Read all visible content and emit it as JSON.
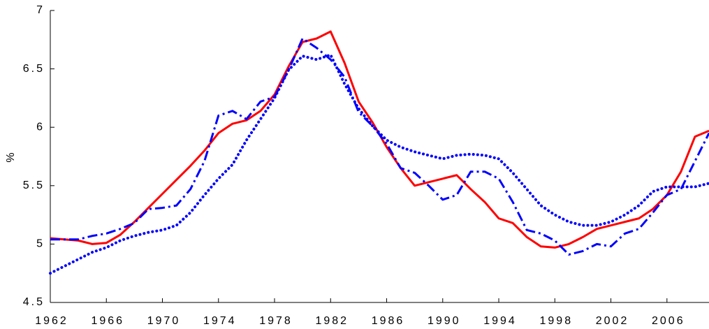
{
  "chart_data": {
    "type": "line",
    "ylabel": "%",
    "x": [
      1962,
      1963,
      1964,
      1965,
      1966,
      1967,
      1968,
      1969,
      1970,
      1971,
      1972,
      1973,
      1974,
      1975,
      1976,
      1977,
      1978,
      1979,
      1980,
      1981,
      1982,
      1983,
      1984,
      1985,
      1986,
      1987,
      1988,
      1989,
      1990,
      1991,
      1992,
      1993,
      1994,
      1995,
      1996,
      1997,
      1998,
      1999,
      2000,
      2001,
      2002,
      2003,
      2004,
      2005,
      2006,
      2007,
      2008,
      2009
    ],
    "xlim": [
      1962,
      2009
    ],
    "xticks": [
      1962,
      1966,
      1970,
      1974,
      1978,
      1982,
      1986,
      1990,
      1994,
      1998,
      2002,
      2006
    ],
    "ylim": [
      4.5,
      7
    ],
    "yticks": [
      4.5,
      5,
      5.5,
      6,
      6.5,
      7
    ],
    "series": [
      {
        "color": "#ff0000",
        "style": "solid",
        "values": [
          5.05,
          5.04,
          5.03,
          5.0,
          5.01,
          5.08,
          5.19,
          5.31,
          5.43,
          5.55,
          5.67,
          5.8,
          5.95,
          6.03,
          6.06,
          6.14,
          6.28,
          6.52,
          6.73,
          6.76,
          6.82,
          6.55,
          6.22,
          6.04,
          5.83,
          5.65,
          5.5,
          5.53,
          5.56,
          5.59,
          5.47,
          5.36,
          5.22,
          5.18,
          5.06,
          4.98,
          4.97,
          5.0,
          5.06,
          5.13,
          5.16,
          5.19,
          5.22,
          5.3,
          5.42,
          5.62,
          5.92,
          5.97
        ]
      },
      {
        "color": "#0000ff",
        "style": "dashdot",
        "values": [
          5.04,
          5.04,
          5.04,
          5.07,
          5.09,
          5.13,
          5.18,
          5.3,
          5.31,
          5.33,
          5.47,
          5.71,
          6.1,
          6.14,
          6.07,
          6.22,
          6.26,
          6.49,
          6.76,
          6.68,
          6.58,
          6.43,
          6.13,
          6.01,
          5.86,
          5.65,
          5.61,
          5.5,
          5.38,
          5.42,
          5.62,
          5.62,
          5.56,
          5.36,
          5.12,
          5.09,
          5.03,
          4.91,
          4.94,
          5.0,
          4.98,
          5.09,
          5.13,
          5.27,
          5.42,
          5.47,
          5.71,
          5.95
        ]
      },
      {
        "color": "#0000ff",
        "style": "dotted",
        "values": [
          4.75,
          4.81,
          4.87,
          4.93,
          4.97,
          5.03,
          5.07,
          5.1,
          5.12,
          5.16,
          5.27,
          5.42,
          5.56,
          5.68,
          5.89,
          6.07,
          6.25,
          6.49,
          6.61,
          6.58,
          6.62,
          6.37,
          6.16,
          6.01,
          5.89,
          5.83,
          5.79,
          5.76,
          5.73,
          5.76,
          5.77,
          5.76,
          5.73,
          5.61,
          5.47,
          5.33,
          5.25,
          5.19,
          5.16,
          5.16,
          5.19,
          5.25,
          5.33,
          5.45,
          5.49,
          5.49,
          5.49,
          5.52
        ]
      }
    ]
  }
}
